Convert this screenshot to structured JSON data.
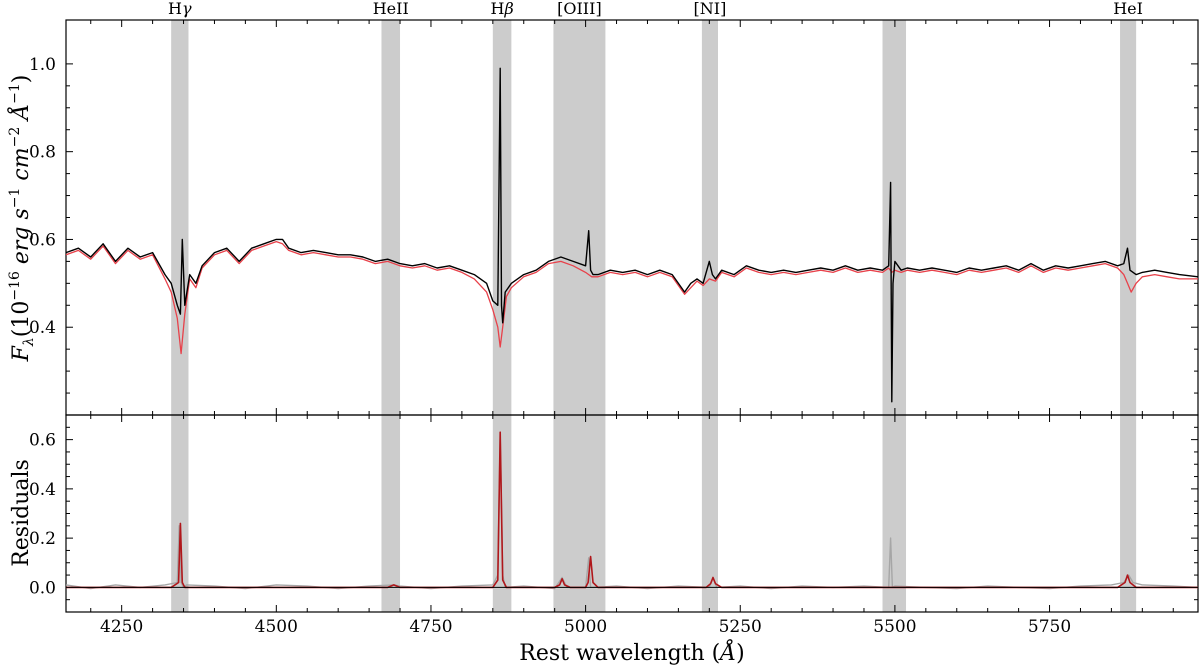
{
  "chart_data": [
    {
      "type": "line",
      "panel": "top",
      "title": "",
      "xlabel": "",
      "ylabel": "F_λ(10^-16 erg s^-1 cm^-2 Å^-1)",
      "ylabel_parts": {
        "base": "F",
        "base_sub": "λ",
        "open": "(10",
        "exp1": "−16",
        "erg": " erg s",
        "exp2": "−1",
        "cm": " cm",
        "exp3": "−2",
        "ang": " Å",
        "exp4": "−1",
        "close": ")"
      },
      "xlim": [
        4160,
        5990
      ],
      "ylim": [
        0.2,
        1.1
      ],
      "yticks": [
        0.4,
        0.6,
        0.8,
        1.0
      ],
      "ytick_labels": [
        "0.4",
        "0.6",
        "0.8",
        "1.0"
      ],
      "series": [
        {
          "color": "#000000",
          "x": [
            4160,
            4180,
            4200,
            4220,
            4240,
            4260,
            4280,
            4300,
            4320,
            4330,
            4340,
            4345,
            4348,
            4352,
            4360,
            4370,
            4380,
            4400,
            4420,
            4440,
            4460,
            4480,
            4500,
            4510,
            4520,
            4540,
            4560,
            4580,
            4600,
            4620,
            4640,
            4660,
            4680,
            4700,
            4720,
            4740,
            4760,
            4780,
            4800,
            4820,
            4840,
            4850,
            4858,
            4862,
            4864,
            4866,
            4870,
            4880,
            4900,
            4920,
            4940,
            4960,
            4980,
            5000,
            5005,
            5008,
            5012,
            5020,
            5040,
            5060,
            5080,
            5100,
            5120,
            5140,
            5160,
            5170,
            5180,
            5190,
            5200,
            5205,
            5210,
            5220,
            5240,
            5260,
            5280,
            5300,
            5320,
            5340,
            5360,
            5380,
            5400,
            5420,
            5440,
            5460,
            5480,
            5490,
            5493,
            5495,
            5497,
            5500,
            5510,
            5520,
            5540,
            5560,
            5580,
            5600,
            5620,
            5640,
            5660,
            5680,
            5700,
            5720,
            5740,
            5760,
            5780,
            5800,
            5820,
            5840,
            5860,
            5870,
            5876,
            5880,
            5890,
            5900,
            5920,
            5940,
            5960,
            5990
          ],
          "y": [
            0.57,
            0.58,
            0.56,
            0.59,
            0.55,
            0.58,
            0.56,
            0.57,
            0.52,
            0.5,
            0.45,
            0.43,
            0.6,
            0.45,
            0.52,
            0.5,
            0.54,
            0.57,
            0.58,
            0.55,
            0.58,
            0.59,
            0.6,
            0.6,
            0.58,
            0.57,
            0.575,
            0.57,
            0.565,
            0.565,
            0.56,
            0.55,
            0.555,
            0.545,
            0.54,
            0.545,
            0.535,
            0.54,
            0.53,
            0.52,
            0.5,
            0.46,
            0.45,
            0.99,
            0.45,
            0.41,
            0.48,
            0.5,
            0.52,
            0.53,
            0.55,
            0.56,
            0.55,
            0.54,
            0.62,
            0.53,
            0.52,
            0.52,
            0.53,
            0.525,
            0.53,
            0.52,
            0.53,
            0.52,
            0.48,
            0.5,
            0.51,
            0.5,
            0.55,
            0.52,
            0.51,
            0.53,
            0.52,
            0.54,
            0.53,
            0.525,
            0.53,
            0.525,
            0.53,
            0.535,
            0.53,
            0.54,
            0.53,
            0.535,
            0.53,
            0.54,
            0.73,
            0.23,
            0.5,
            0.55,
            0.53,
            0.535,
            0.53,
            0.535,
            0.53,
            0.525,
            0.535,
            0.53,
            0.535,
            0.54,
            0.53,
            0.545,
            0.53,
            0.54,
            0.535,
            0.54,
            0.545,
            0.55,
            0.54,
            0.545,
            0.58,
            0.53,
            0.52,
            0.525,
            0.53,
            0.525,
            0.52,
            0.515
          ]
        },
        {
          "color": "#e8414a",
          "x": [
            4160,
            4180,
            4200,
            4220,
            4240,
            4260,
            4280,
            4300,
            4320,
            4330,
            4340,
            4346,
            4352,
            4360,
            4370,
            4380,
            4400,
            4420,
            4440,
            4460,
            4480,
            4500,
            4510,
            4520,
            4540,
            4560,
            4580,
            4600,
            4620,
            4640,
            4660,
            4680,
            4700,
            4720,
            4740,
            4760,
            4780,
            4800,
            4820,
            4840,
            4850,
            4858,
            4862,
            4866,
            4872,
            4880,
            4900,
            4920,
            4940,
            4960,
            4980,
            5000,
            5005,
            5010,
            5020,
            5040,
            5060,
            5080,
            5100,
            5120,
            5140,
            5160,
            5170,
            5180,
            5190,
            5200,
            5210,
            5220,
            5240,
            5260,
            5280,
            5300,
            5320,
            5340,
            5360,
            5380,
            5400,
            5420,
            5440,
            5460,
            5480,
            5490,
            5495,
            5500,
            5510,
            5520,
            5540,
            5560,
            5580,
            5600,
            5620,
            5640,
            5660,
            5680,
            5700,
            5720,
            5740,
            5760,
            5780,
            5800,
            5820,
            5840,
            5860,
            5870,
            5876,
            5882,
            5890,
            5900,
            5920,
            5940,
            5960,
            5990
          ],
          "y": [
            0.565,
            0.575,
            0.555,
            0.585,
            0.545,
            0.575,
            0.555,
            0.565,
            0.51,
            0.48,
            0.42,
            0.34,
            0.43,
            0.51,
            0.49,
            0.535,
            0.565,
            0.575,
            0.545,
            0.575,
            0.585,
            0.595,
            0.59,
            0.575,
            0.565,
            0.57,
            0.565,
            0.56,
            0.56,
            0.555,
            0.545,
            0.55,
            0.54,
            0.535,
            0.54,
            0.53,
            0.535,
            0.525,
            0.51,
            0.48,
            0.44,
            0.4,
            0.355,
            0.4,
            0.47,
            0.49,
            0.515,
            0.525,
            0.545,
            0.55,
            0.54,
            0.525,
            0.52,
            0.515,
            0.515,
            0.525,
            0.52,
            0.525,
            0.515,
            0.525,
            0.515,
            0.475,
            0.49,
            0.505,
            0.495,
            0.51,
            0.505,
            0.525,
            0.515,
            0.535,
            0.525,
            0.52,
            0.525,
            0.52,
            0.525,
            0.53,
            0.525,
            0.535,
            0.525,
            0.53,
            0.525,
            0.535,
            0.525,
            0.53,
            0.525,
            0.53,
            0.525,
            0.53,
            0.525,
            0.52,
            0.53,
            0.525,
            0.53,
            0.535,
            0.525,
            0.54,
            0.525,
            0.535,
            0.53,
            0.535,
            0.54,
            0.545,
            0.535,
            0.52,
            0.5,
            0.48,
            0.5,
            0.515,
            0.52,
            0.515,
            0.51,
            0.51
          ]
        }
      ]
    },
    {
      "type": "line",
      "panel": "bottom",
      "title": "",
      "xlabel": "Rest wavelength (Å)",
      "xlabel_parts": {
        "text": "Rest wavelength (",
        "unit": "Å",
        "close": ")"
      },
      "ylabel": "Residuals",
      "xlim": [
        4160,
        5990
      ],
      "ylim": [
        -0.1,
        0.7
      ],
      "xticks": [
        4250,
        4500,
        4750,
        5000,
        5250,
        5500,
        5750
      ],
      "xtick_labels": [
        "4250",
        "4500",
        "4750",
        "5000",
        "5250",
        "5500",
        "5750"
      ],
      "yticks": [
        0.0,
        0.2,
        0.4,
        0.6
      ],
      "ytick_labels": [
        "0.0",
        "0.2",
        "0.4",
        "0.6"
      ],
      "series": [
        {
          "color": "#a6a6a6",
          "x": [
            4160,
            4200,
            4240,
            4280,
            4320,
            4340,
            4343,
            4346,
            4350,
            4355,
            4400,
            4450,
            4500,
            4550,
            4600,
            4650,
            4690,
            4700,
            4750,
            4800,
            4850,
            4858,
            4862,
            4866,
            4870,
            4900,
            4950,
            4962,
            4970,
            5000,
            5005,
            5008,
            5012,
            5050,
            5100,
            5150,
            5200,
            5206,
            5212,
            5250,
            5300,
            5350,
            5400,
            5450,
            5490,
            5493,
            5496,
            5500,
            5550,
            5600,
            5650,
            5700,
            5750,
            5800,
            5850,
            5870,
            5878,
            5885,
            5900,
            5950,
            5990
          ],
          "y": [
            0.01,
            -0.005,
            0.01,
            0.0,
            0.01,
            0.02,
            0.25,
            0.02,
            0.0,
            0.01,
            0.005,
            -0.005,
            0.01,
            0.005,
            -0.005,
            0.005,
            0.01,
            0.005,
            -0.005,
            0.005,
            0.01,
            0.05,
            0.62,
            0.05,
            0.0,
            0.005,
            -0.005,
            0.04,
            0.0,
            0.0,
            0.12,
            0.0,
            0.0,
            0.005,
            -0.005,
            0.005,
            0.0,
            0.04,
            0.0,
            0.005,
            -0.005,
            0.005,
            0.0,
            0.005,
            0.0,
            0.2,
            0.0,
            0.005,
            0.0,
            -0.005,
            0.005,
            0.0,
            -0.005,
            0.005,
            0.01,
            0.02,
            0.05,
            0.02,
            0.01,
            0.005,
            0.0
          ]
        },
        {
          "color": "#b0171b",
          "x": [
            4160,
            4330,
            4342,
            4345,
            4348,
            4352,
            4360,
            4680,
            4690,
            4700,
            4850,
            4858,
            4862,
            4866,
            4872,
            4950,
            4958,
            4962,
            4966,
            4975,
            5000,
            5004,
            5008,
            5012,
            5020,
            5195,
            5202,
            5206,
            5210,
            5220,
            5860,
            5872,
            5876,
            5880,
            5890,
            5990
          ],
          "y": [
            0.0,
            0.0,
            0.02,
            0.26,
            0.02,
            0.0,
            0.0,
            0.0,
            0.01,
            0.0,
            0.0,
            0.03,
            0.63,
            0.03,
            0.0,
            0.0,
            0.01,
            0.035,
            0.01,
            0.0,
            0.0,
            0.02,
            0.125,
            0.02,
            0.0,
            0.0,
            0.015,
            0.04,
            0.015,
            0.0,
            0.0,
            0.02,
            0.05,
            0.02,
            0.0,
            0.0
          ]
        }
      ]
    }
  ],
  "shaded_regions": [
    {
      "from": 4330,
      "to": 4358,
      "label": "Hγ",
      "label_parts": {
        "main": "H",
        "sym": "γ"
      }
    },
    {
      "from": 4670,
      "to": 4700,
      "label": "HeII",
      "label_parts": {
        "main": "HeII",
        "sym": ""
      }
    },
    {
      "from": 4850,
      "to": 4880,
      "label": "Hβ",
      "label_parts": {
        "main": "H",
        "sym": "β"
      }
    },
    {
      "from": 4948,
      "to": 5032,
      "label": "[OIII]",
      "label_parts": {
        "main": "[OIII]",
        "sym": ""
      }
    },
    {
      "from": 5188,
      "to": 5214,
      "label": "[NI]",
      "label_parts": {
        "main": "[NI]",
        "sym": ""
      }
    },
    {
      "from": 5480,
      "to": 5518,
      "label": "",
      "label_parts": {
        "main": "",
        "sym": ""
      }
    },
    {
      "from": 5864,
      "to": 5890,
      "label": "HeI",
      "label_parts": {
        "main": "HeI",
        "sym": ""
      }
    }
  ],
  "colors": {
    "shade": "#cccccc",
    "axis": "#000000"
  }
}
